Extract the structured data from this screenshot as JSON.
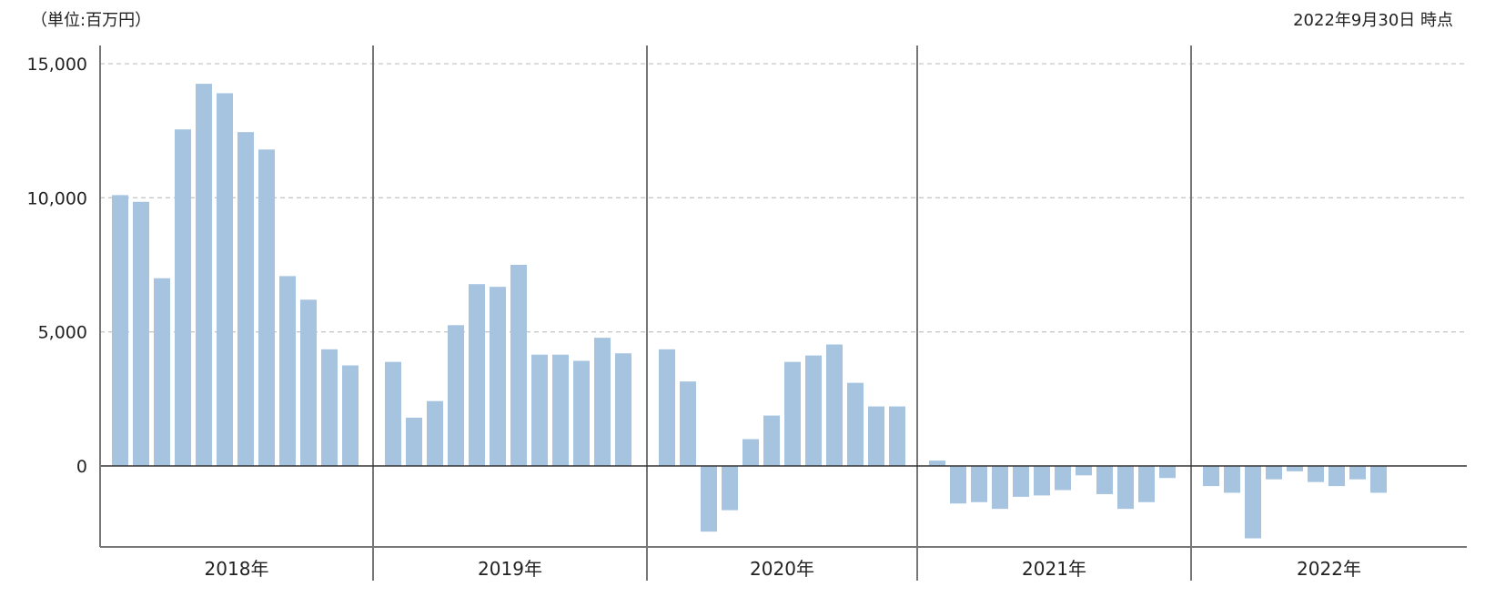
{
  "header": {
    "unit_label": "（単位:百万円）",
    "as_of_label": "2022年9月30日 時点"
  },
  "colors": {
    "bar": "#a6c4e0",
    "grid": "#c8c8c8",
    "axis": "#333333",
    "separator": "#777777"
  },
  "chart_data": {
    "type": "bar",
    "title": "",
    "xlabel": "",
    "ylabel": "",
    "ylim": [
      -3000,
      15000
    ],
    "yticks": [
      0,
      5000,
      10000,
      15000
    ],
    "ytick_labels": [
      "0",
      "5,000",
      "10,000",
      "15,000"
    ],
    "grid": true,
    "groups": [
      {
        "label": "2018年",
        "values": [
          10100,
          9850,
          7000,
          12550,
          14250,
          13900,
          12450,
          11800,
          7080,
          6200,
          4350,
          3750
        ]
      },
      {
        "label": "2019年",
        "values": [
          3880,
          1800,
          2420,
          5250,
          6780,
          6680,
          7500,
          4150,
          4150,
          3920,
          4780,
          4200
        ]
      },
      {
        "label": "2020年",
        "values": [
          4350,
          3150,
          -2450,
          -1650,
          1000,
          1880,
          3880,
          4120,
          4530,
          3100,
          2220,
          2220
        ]
      },
      {
        "label": "2021年",
        "values": [
          200,
          -1400,
          -1350,
          -1600,
          -1150,
          -1100,
          -900,
          -350,
          -1050,
          -1600,
          -1350,
          -450
        ]
      },
      {
        "label": "2022年",
        "values": [
          -750,
          -1000,
          -2700,
          -500,
          -200,
          -600,
          -750,
          -500,
          -1000
        ]
      }
    ]
  }
}
